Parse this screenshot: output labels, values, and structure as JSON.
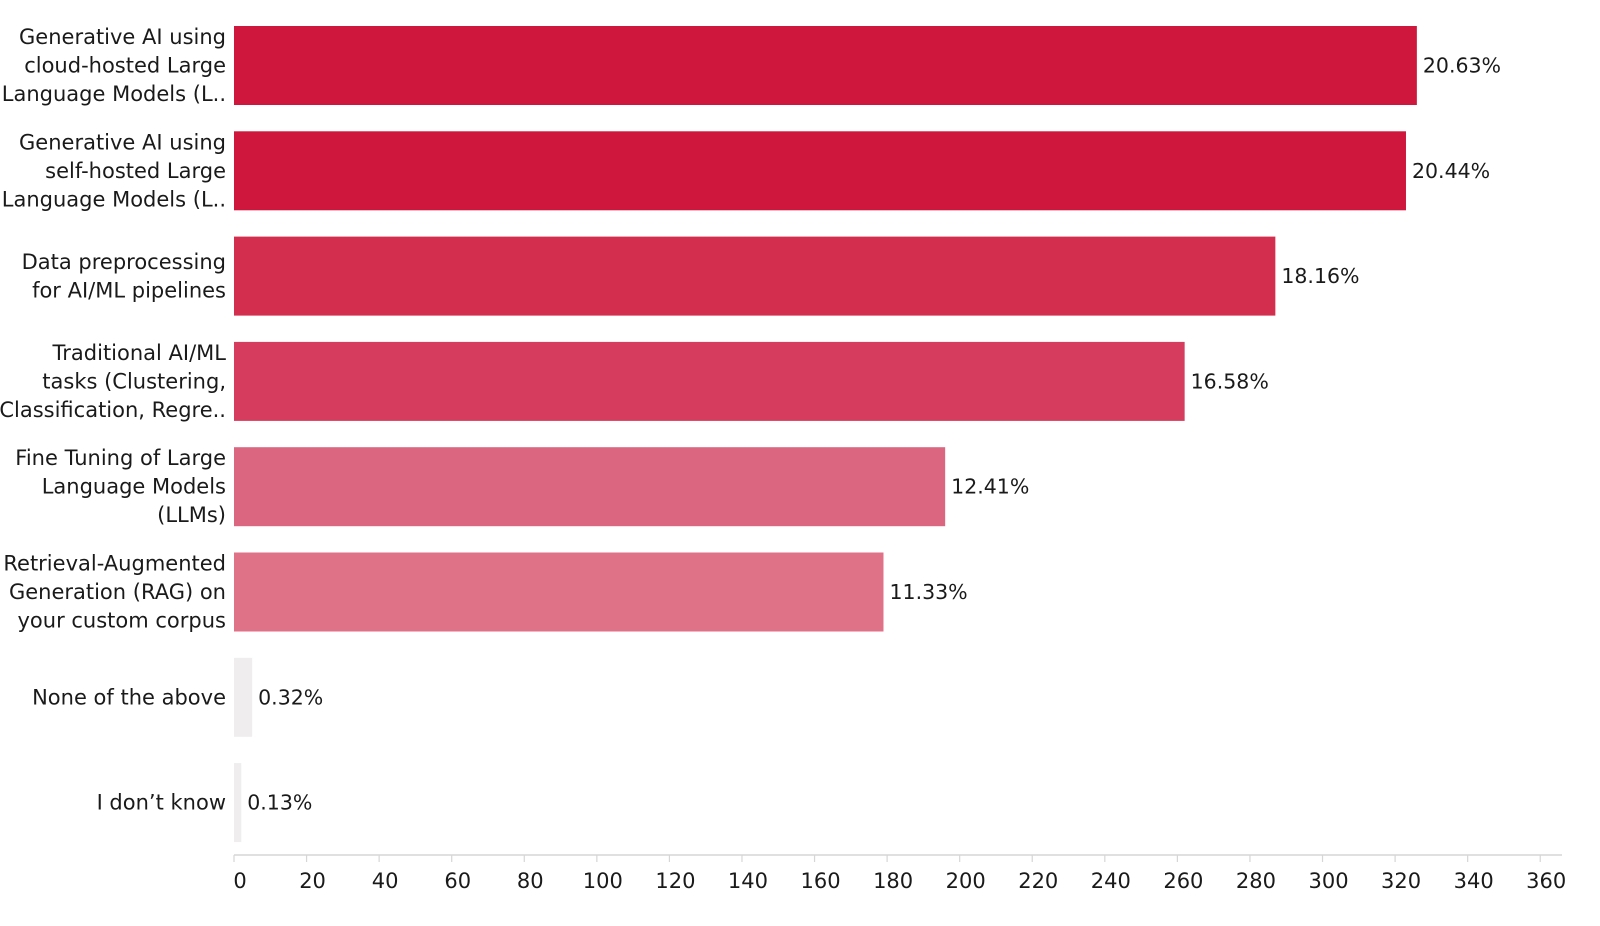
{
  "chart_data": {
    "type": "bar",
    "orientation": "horizontal",
    "title": "",
    "xlabel": "",
    "ylabel": "",
    "xlim": [
      0,
      360
    ],
    "x_ticks": [
      "0",
      "20",
      "40",
      "60",
      "80",
      "100",
      "120",
      "140",
      "160",
      "180",
      "200",
      "220",
      "240",
      "260",
      "280",
      "300",
      "320",
      "340",
      "360"
    ],
    "grid": false,
    "categories": [
      [
        "Generative AI using",
        "cloud-hosted Large",
        "Language Models (L.."
      ],
      [
        "Generative AI using",
        "self-hosted Large",
        "Language Models (L.."
      ],
      [
        "Data preprocessing",
        "for AI/ML pipelines"
      ],
      [
        "Traditional AI/ML",
        "tasks (Clustering,",
        "Classification, Regre.."
      ],
      [
        "Fine Tuning of Large",
        "Language Models",
        "(LLMs)"
      ],
      [
        "Retrieval-Augmented",
        "Generation (RAG) on",
        "your custom corpus"
      ],
      [
        "None of the above"
      ],
      [
        "I don’t know"
      ]
    ],
    "values": [
      326,
      323,
      287,
      262,
      196,
      179,
      5,
      2
    ],
    "labels": [
      "20.63%",
      "20.44%",
      "18.16%",
      "16.58%",
      "12.41%",
      "11.33%",
      "0.32%",
      "0.13%"
    ],
    "colors": [
      "#cf163c",
      "#cf163c",
      "#d32e4e",
      "#d63c5d",
      "#db6680",
      "#df7287",
      "#efeded",
      "#efeded"
    ]
  }
}
